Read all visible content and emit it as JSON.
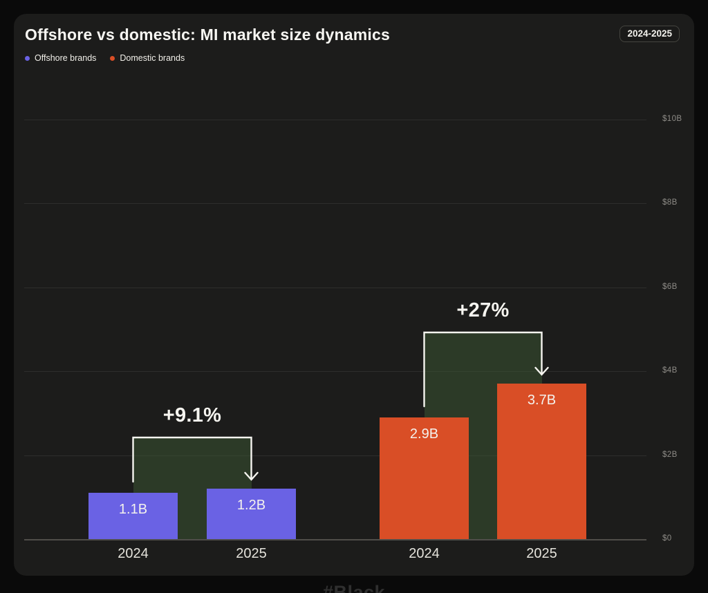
{
  "page": {
    "watermark": "#Black"
  },
  "header": {
    "period_badge": "2024-2025"
  },
  "chart_data": {
    "type": "bar",
    "title": "Offshore vs domestic: MI market size dynamics",
    "xlabel": "",
    "ylabel": "",
    "ylim": [
      0,
      10
    ],
    "grid": true,
    "legend_position": "top-left",
    "highlight_color": "#3b5733",
    "arrow_color": "#f5f4ef",
    "yticks": [
      {
        "value": 10,
        "label": "$10B"
      },
      {
        "value": 8,
        "label": "$8B"
      },
      {
        "value": 6,
        "label": "$6B"
      },
      {
        "value": 4,
        "label": "$4B"
      },
      {
        "value": 2,
        "label": "$2B"
      },
      {
        "value": 0,
        "label": "$0"
      }
    ],
    "categories": [
      "2024",
      "2025"
    ],
    "series": [
      {
        "name": "Offshore brands",
        "color": "#6a62e4",
        "values": [
          1.1,
          1.2
        ],
        "value_labels": [
          "1.1B",
          "1.2B"
        ],
        "change_label": "+9.1%"
      },
      {
        "name": "Domestic brands",
        "color": "#d94e26",
        "values": [
          2.9,
          3.7
        ],
        "value_labels": [
          "2.9B",
          "3.7B"
        ],
        "change_label": "+27%"
      }
    ]
  }
}
